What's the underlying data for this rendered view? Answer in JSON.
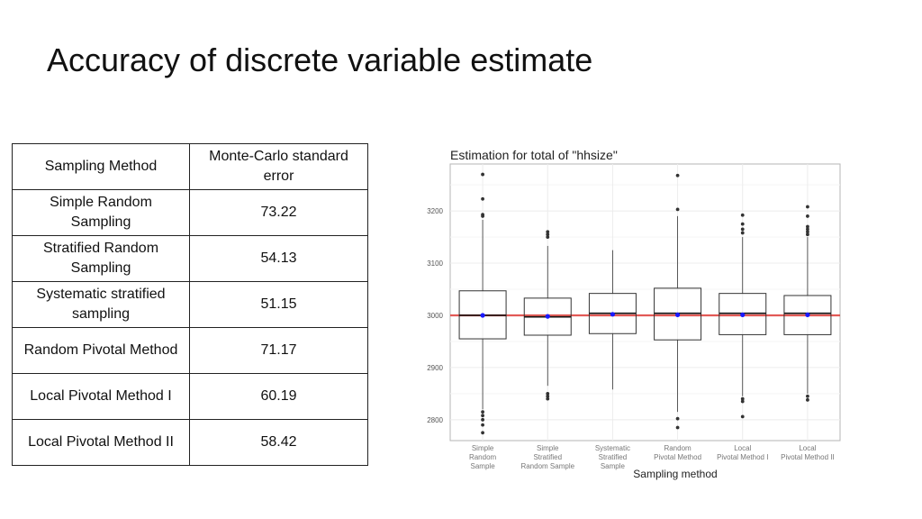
{
  "page": {
    "title": "Accuracy of discrete variable estimate"
  },
  "table": {
    "headers": [
      "Sampling Method",
      "Monte-Carlo standard error"
    ],
    "rows": [
      [
        "Simple Random Sampling",
        "73.22"
      ],
      [
        "Stratified Random Sampling",
        "54.13"
      ],
      [
        "Systematic stratified sampling",
        "51.15"
      ],
      [
        "Random Pivotal Method",
        "71.17"
      ],
      [
        "Local Pivotal Method I",
        "60.19"
      ],
      [
        "Local Pivotal Method II",
        "58.42"
      ]
    ]
  },
  "chart_data": {
    "type": "box",
    "title": "Estimation for total of \"hhsize\"",
    "xlabel": "Sampling method",
    "ylabel": "",
    "ylim": [
      2760,
      3290
    ],
    "yticks": [
      2800,
      2900,
      3000,
      3100,
      3200
    ],
    "grid": true,
    "reference_line": {
      "value": 3000,
      "color": "#e0403a"
    },
    "colors": {
      "box": "#333333",
      "mean": "#1a1aff",
      "reference": "#e0403a",
      "outlier": "#333333"
    },
    "categories": [
      "Simple Random Sample",
      "Simple Stratified Random Sample",
      "Systematic Stratified Sample",
      "Random Pivotal Method",
      "Local Pivotal Method I",
      "Local Pivotal Method II"
    ],
    "category_lines": [
      [
        "Simple",
        "Random",
        "Sample"
      ],
      [
        "Simple",
        "Stratified",
        "Random Sample"
      ],
      [
        "Systematic",
        "Stratified",
        "Sample"
      ],
      [
        "Random",
        "Pivotal Method"
      ],
      [
        "Local",
        "Pivotal Method I"
      ],
      [
        "Local",
        "Pivotal Method II"
      ]
    ],
    "boxes": [
      {
        "whisker_low": 2820,
        "q1": 2955,
        "median": 3000,
        "q3": 3047,
        "whisker_high": 3183,
        "mean": 3000,
        "outliers": [
          3270,
          3223,
          3193,
          3190,
          2815,
          2808,
          2800,
          2790,
          2775
        ]
      },
      {
        "whisker_low": 2865,
        "q1": 2962,
        "median": 2997,
        "q3": 3033,
        "whisker_high": 3133,
        "mean": 2998,
        "outliers": [
          3160,
          3155,
          3150,
          2850,
          2845,
          2840
        ]
      },
      {
        "whisker_low": 2858,
        "q1": 2965,
        "median": 3004,
        "q3": 3042,
        "whisker_high": 3125,
        "mean": 3002,
        "outliers": []
      },
      {
        "whisker_low": 2815,
        "q1": 2953,
        "median": 3004,
        "q3": 3052,
        "whisker_high": 3190,
        "mean": 3001,
        "outliers": [
          3268,
          3203,
          2802,
          2785
        ]
      },
      {
        "whisker_low": 2845,
        "q1": 2963,
        "median": 3004,
        "q3": 3042,
        "whisker_high": 3150,
        "mean": 3001,
        "outliers": [
          3192,
          3175,
          3165,
          3158,
          2840,
          2835,
          2806
        ]
      },
      {
        "whisker_low": 2850,
        "q1": 2963,
        "median": 3004,
        "q3": 3038,
        "whisker_high": 3150,
        "mean": 3001,
        "outliers": [
          3208,
          3190,
          3170,
          3165,
          3160,
          3155,
          2845,
          2838
        ]
      }
    ]
  }
}
